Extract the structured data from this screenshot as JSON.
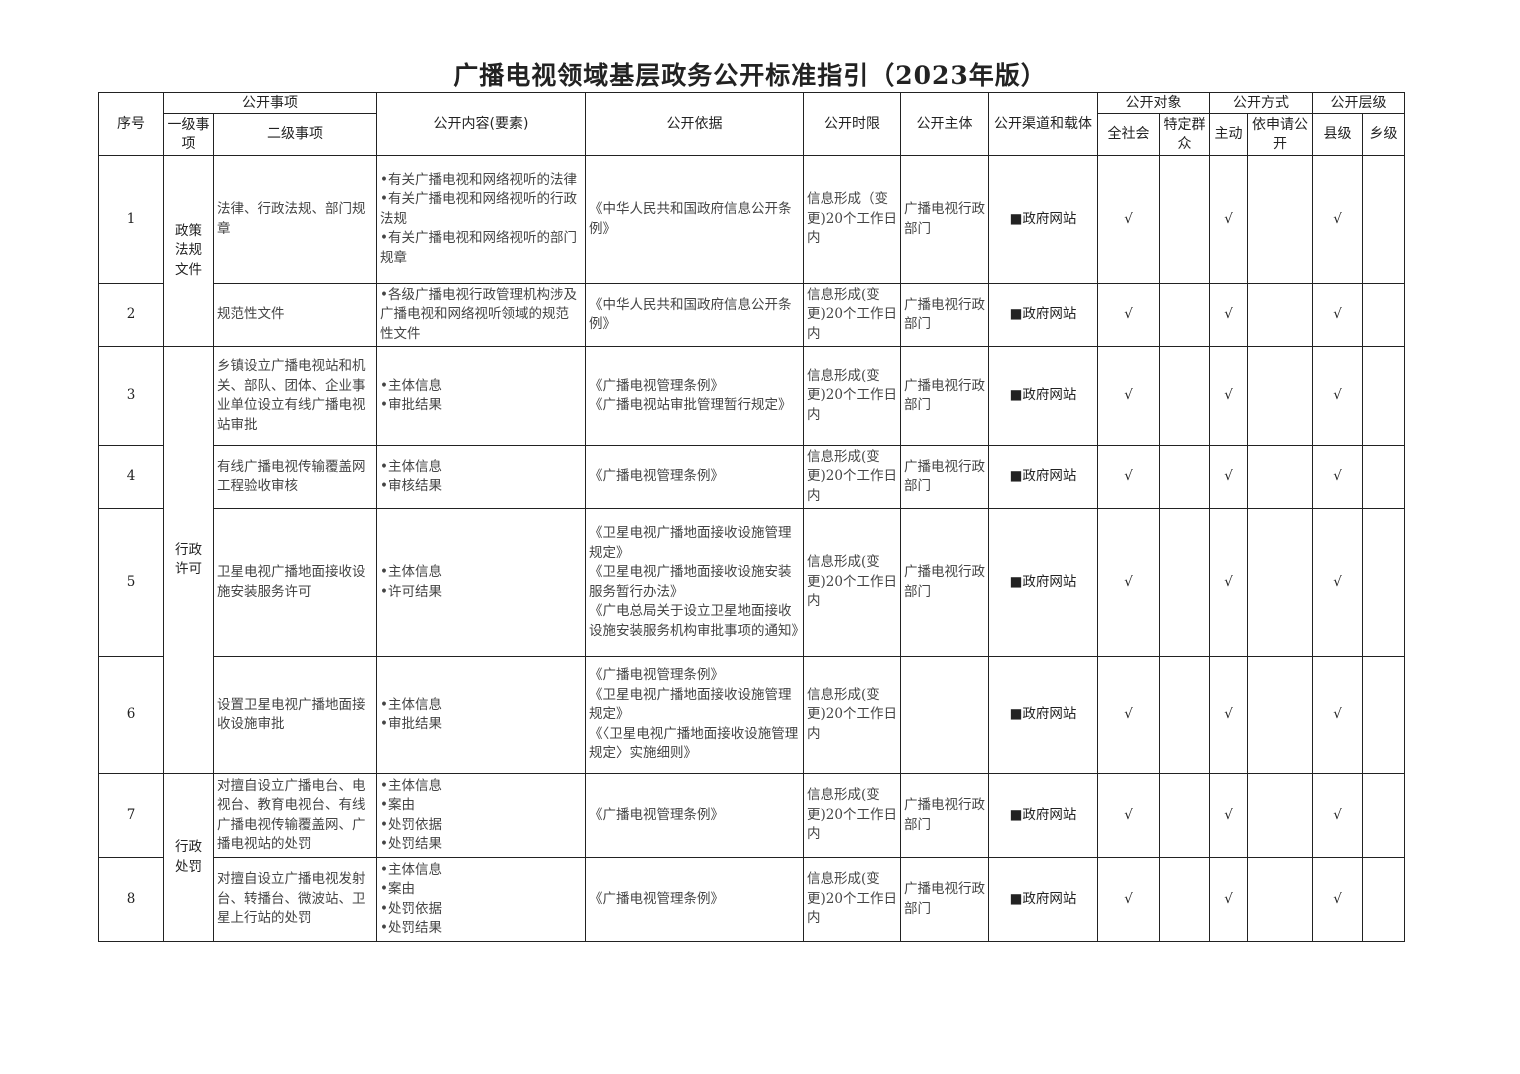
{
  "title": "广播电视领域基层政务公开标准指引（2023年版）",
  "headers": {
    "seq": "序号",
    "matter": "公开事项",
    "level1": "一级事项",
    "level2": "二级事项",
    "content": "公开内容(要素)",
    "basis": "公开依据",
    "time": "公开时限",
    "subject": "公开主体",
    "channel": "公开渠道和载体",
    "target": "公开对象",
    "all_society": "全社会",
    "specific": "特定群众",
    "method": "公开方式",
    "active": "主动",
    "on_request": "依申请公开",
    "level": "公开层级",
    "county": "县级",
    "township": "乡级"
  },
  "groups": [
    {
      "label": "政策法规文件",
      "rows": 2
    },
    {
      "label": "行政许可",
      "rows": 4
    },
    {
      "label": "行政处罚",
      "rows": 2
    }
  ],
  "rows": [
    {
      "seq": "1",
      "level2": "法律、行政法规、部门规章",
      "content": [
        "•有关广播电视和网络视听的法律",
        "•有关广播电视和网络视听的行政法规",
        "•有关广播电视和网络视听的部门规章"
      ],
      "basis": [
        "《中华人民共和国政府信息公开条例》"
      ],
      "time": "信息形成（变更)20个工作日内",
      "subject": "广播电视行政部门",
      "channel": "■政府网站",
      "all": "√",
      "specific": "",
      "active": "√",
      "request": "",
      "county": "√",
      "township": ""
    },
    {
      "seq": "2",
      "level2": "规范性文件",
      "content": [
        "•各级广播电视行政管理机构涉及广播电视和网络视听领域的规范性文件"
      ],
      "basis": [
        "《中华人民共和国政府信息公开条例》"
      ],
      "time": "信息形成(变更)20个工作日内",
      "subject": "广播电视行政部门",
      "channel": "■政府网站",
      "all": "√",
      "specific": "",
      "active": "√",
      "request": "",
      "county": "√",
      "township": ""
    },
    {
      "seq": "3",
      "level2": "乡镇设立广播电视站和机关、部队、团体、企业事业单位设立有线广播电视站审批",
      "content": [
        "•主体信息",
        "•审批结果"
      ],
      "basis": [
        "《广播电视管理条例》",
        "《广播电视站审批管理暂行规定》"
      ],
      "time": "信息形成(变更)20个工作日内",
      "subject": "广播电视行政部门",
      "channel": "■政府网站",
      "all": "√",
      "specific": "",
      "active": "√",
      "request": "",
      "county": "√",
      "township": ""
    },
    {
      "seq": "4",
      "level2": "有线广播电视传输覆盖网工程验收审核",
      "content": [
        "•主体信息",
        "•审核结果"
      ],
      "basis": [
        "《广播电视管理条例》"
      ],
      "time": "信息形成(变更)20个工作日内",
      "subject": "广播电视行政部门",
      "channel": "■政府网站",
      "all": "√",
      "specific": "",
      "active": "√",
      "request": "",
      "county": "√",
      "township": ""
    },
    {
      "seq": "5",
      "level2": "卫星电视广播地面接收设施安装服务许可",
      "content": [
        "•主体信息",
        "•许可结果"
      ],
      "basis": [
        "《卫星电视广播地面接收设施管理规定》",
        "《卫星电视广播地面接收设施安装服务暂行办法》",
        "《广电总局关于设立卫星地面接收设施安装服务机构审批事项的通知》"
      ],
      "time": "信息形成(变更)20个工作日内",
      "subject": "广播电视行政部门",
      "channel": "■政府网站",
      "all": "√",
      "specific": "",
      "active": "√",
      "request": "",
      "county": "√",
      "township": ""
    },
    {
      "seq": "6",
      "level2": "设置卫星电视广播地面接收设施审批",
      "content": [
        "•主体信息",
        "•审批结果"
      ],
      "basis": [
        "《广播电视管理条例》",
        "《卫星电视广播地面接收设施管理规定》",
        "《〈卫星电视广播地面接收设施管理规定〉实施细则》"
      ],
      "time": "信息形成(变更)20个工作日内",
      "subject": "",
      "channel": "■政府网站",
      "all": "√",
      "specific": "",
      "active": "√",
      "request": "",
      "county": "√",
      "township": ""
    },
    {
      "seq": "7",
      "level2": "对擅自设立广播电台、电视台、教育电视台、有线广播电视传输覆盖网、广播电视站的处罚",
      "content": [
        "•主体信息",
        "•案由",
        "•处罚依据",
        "•处罚结果"
      ],
      "basis": [
        "《广播电视管理条例》"
      ],
      "time": "信息形成(变更)20个工作日内",
      "subject": "广播电视行政部门",
      "channel": "■政府网站",
      "all": "√",
      "specific": "",
      "active": "√",
      "request": "",
      "county": "√",
      "township": ""
    },
    {
      "seq": "8",
      "level2": "对擅自设立广播电视发射台、转播台、微波站、卫星上行站的处罚",
      "content": [
        "•主体信息",
        "•案由",
        "•处罚依据",
        "•处罚结果"
      ],
      "basis": [
        "《广播电视管理条例》"
      ],
      "time": "信息形成(变更)20个工作日内",
      "subject": "广播电视行政部门",
      "channel": "■政府网站",
      "all": "√",
      "specific": "",
      "active": "√",
      "request": "",
      "county": "√",
      "township": ""
    }
  ]
}
